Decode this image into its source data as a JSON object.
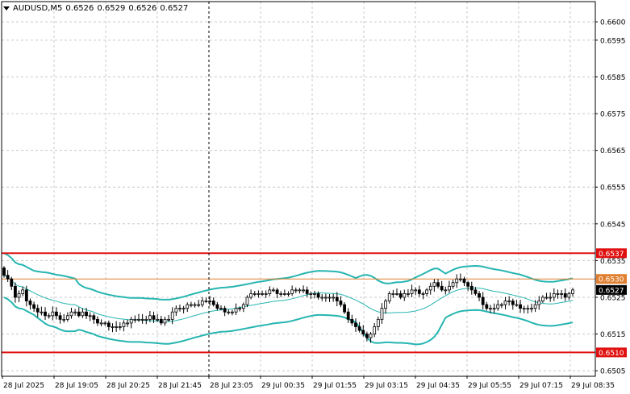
{
  "header": {
    "symbol_timeframe": "AUDUSD,M5",
    "ohlc": [
      "0.6526",
      "0.6529",
      "0.6526",
      "0.6527"
    ]
  },
  "chart_data": {
    "type": "candlestick",
    "symbol": "AUDUSD",
    "timeframe": "M5",
    "ylim": [
      0.65035,
      0.66055
    ],
    "y_ticks": [
      "0.6600",
      "0.6595",
      "0.6585",
      "0.6575",
      "0.6565",
      "0.6555",
      "0.6545",
      "0.6535",
      "0.6525",
      "0.6515",
      "0.6505"
    ],
    "x_ticks": [
      "28 Jul 2025",
      "28 Jul 19:05",
      "28 Jul 20:25",
      "28 Jul 21:45",
      "28 Jul 23:05",
      "29 Jul 00:35",
      "29 Jul 01:55",
      "29 Jul 03:15",
      "29 Jul 04:35",
      "29 Jul 05:55",
      "29 Jul 07:15",
      "29 Jul 08:35"
    ],
    "grid": true,
    "colors": {
      "candle": "#000000",
      "bollinger": "#26b5b0",
      "support_resistance": "#e01010",
      "pivot": "#e08030",
      "current_price_bg": "#000000"
    },
    "horizontal_levels": [
      {
        "price": 0.6537,
        "label": "0.6537",
        "style": "red"
      },
      {
        "price": 0.653,
        "label": "0.6530",
        "style": "orange"
      },
      {
        "price": 0.651,
        "label": "0.6510",
        "style": "red"
      }
    ],
    "current_price": {
      "price": 0.6527,
      "label": "0.6527"
    },
    "vertical_marker_tick": "28 Jul 23:05",
    "candle_closes": [
      0.6531,
      0.653,
      0.6528,
      0.6525,
      0.6526,
      0.6527,
      0.6524,
      0.6523,
      0.6522,
      0.6521,
      0.6521,
      0.652,
      0.652,
      0.6521,
      0.652,
      0.6519,
      0.6519,
      0.652,
      0.6521,
      0.6521,
      0.652,
      0.6521,
      0.652,
      0.652,
      0.6519,
      0.6518,
      0.6518,
      0.6518,
      0.6517,
      0.6517,
      0.6517,
      0.6517,
      0.6518,
      0.6518,
      0.6519,
      0.6519,
      0.6519,
      0.6519,
      0.6519,
      0.652,
      0.6519,
      0.6519,
      0.6518,
      0.6519,
      0.6519,
      0.6521,
      0.6522,
      0.6522,
      0.6522,
      0.6523,
      0.6523,
      0.6523,
      0.6523,
      0.6524,
      0.6524,
      0.6524,
      0.6523,
      0.6522,
      0.6522,
      0.6521,
      0.6521,
      0.6521,
      0.6522,
      0.6522,
      0.6523,
      0.6525,
      0.6526,
      0.6526,
      0.6526,
      0.6526,
      0.6526,
      0.6527,
      0.6527,
      0.6526,
      0.6526,
      0.6526,
      0.6526,
      0.6527,
      0.6527,
      0.6527,
      0.6527,
      0.6526,
      0.6526,
      0.6526,
      0.6525,
      0.6525,
      0.6525,
      0.6525,
      0.6525,
      0.6524,
      0.6523,
      0.6521,
      0.6519,
      0.6518,
      0.6517,
      0.6516,
      0.6515,
      0.6514,
      0.6515,
      0.6517,
      0.6519,
      0.6522,
      0.6524,
      0.6526,
      0.6526,
      0.6526,
      0.6525,
      0.6526,
      0.6526,
      0.6527,
      0.6527,
      0.6526,
      0.6526,
      0.6527,
      0.6528,
      0.6529,
      0.6528,
      0.6527,
      0.6527,
      0.6528,
      0.6529,
      0.653,
      0.653,
      0.6529,
      0.6528,
      0.6527,
      0.6526,
      0.6525,
      0.6523,
      0.6522,
      0.6522,
      0.6522,
      0.6523,
      0.6523,
      0.6524,
      0.6524,
      0.6523,
      0.6523,
      0.6522,
      0.6522,
      0.6522,
      0.6522,
      0.6523,
      0.6524,
      0.6525,
      0.6525,
      0.6525,
      0.6526,
      0.6526,
      0.6526,
      0.6525,
      0.6526,
      0.6527
    ]
  }
}
